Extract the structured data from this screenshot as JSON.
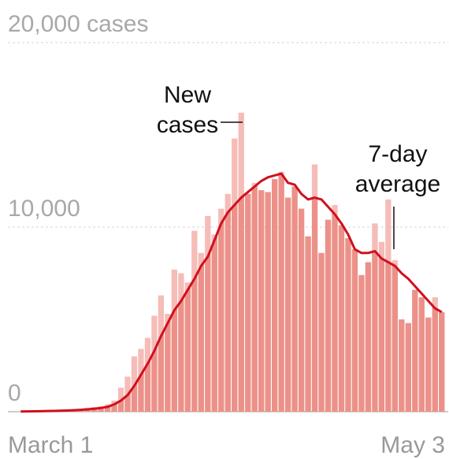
{
  "chart_data": {
    "type": "bar",
    "categories": [
      "March 1",
      null,
      null,
      null,
      null,
      null,
      null,
      null,
      null,
      null,
      null,
      null,
      null,
      null,
      null,
      null,
      null,
      null,
      null,
      null,
      null,
      null,
      null,
      null,
      null,
      null,
      null,
      null,
      null,
      null,
      null,
      null,
      null,
      null,
      null,
      null,
      null,
      null,
      null,
      null,
      null,
      null,
      null,
      null,
      null,
      null,
      null,
      null,
      null,
      null,
      null,
      null,
      null,
      null,
      null,
      null,
      null,
      null,
      null,
      null,
      null,
      null,
      null,
      "May 3"
    ],
    "series": [
      {
        "name": "New cases",
        "type": "bar",
        "color": "#f5bcb8",
        "below_line_color": "#ec9189",
        "values": [
          10,
          20,
          20,
          30,
          40,
          50,
          60,
          80,
          100,
          150,
          200,
          250,
          300,
          400,
          600,
          1300,
          1900,
          3000,
          3400,
          4000,
          5200,
          6300,
          5300,
          7700,
          7500,
          7000,
          9800,
          8600,
          10600,
          9600,
          11000,
          11800,
          14800,
          16200,
          11800,
          12400,
          12000,
          11900,
          12600,
          13000,
          11600,
          12200,
          11000,
          9500,
          13400,
          8600,
          10400,
          11200,
          10100,
          9400,
          8800,
          7400,
          8100,
          10200,
          9200,
          11500,
          8200,
          5000,
          4800,
          6600,
          6200,
          5100,
          6200,
          5400
        ]
      },
      {
        "name": "7-day average",
        "type": "line",
        "color": "#d0101e",
        "values": [
          10,
          15,
          20,
          25,
          35,
          45,
          55,
          65,
          80,
          100,
          130,
          160,
          200,
          260,
          400,
          600,
          900,
          1400,
          2000,
          2600,
          3300,
          4100,
          4800,
          5500,
          6000,
          6600,
          7200,
          7900,
          8400,
          9300,
          10200,
          10800,
          11200,
          11600,
          11900,
          12200,
          12500,
          12700,
          12800,
          12900,
          12400,
          12300,
          11800,
          11500,
          11600,
          11500,
          11100,
          10700,
          10200,
          9600,
          8800,
          8600,
          8600,
          8700,
          8300,
          8100,
          7900,
          7500,
          7200,
          6800,
          6400,
          6000,
          5600,
          5400
        ]
      }
    ],
    "annotations": [
      {
        "lines": [
          "New",
          "cases"
        ]
      },
      {
        "lines": [
          "7-day",
          "average"
        ]
      }
    ],
    "ylim": [
      0,
      20000
    ],
    "yticks": [
      0,
      {
        "value": 10000,
        "label": "10,000"
      },
      {
        "value": 20000,
        "label": "20,000 cases"
      }
    ],
    "grid": true
  }
}
